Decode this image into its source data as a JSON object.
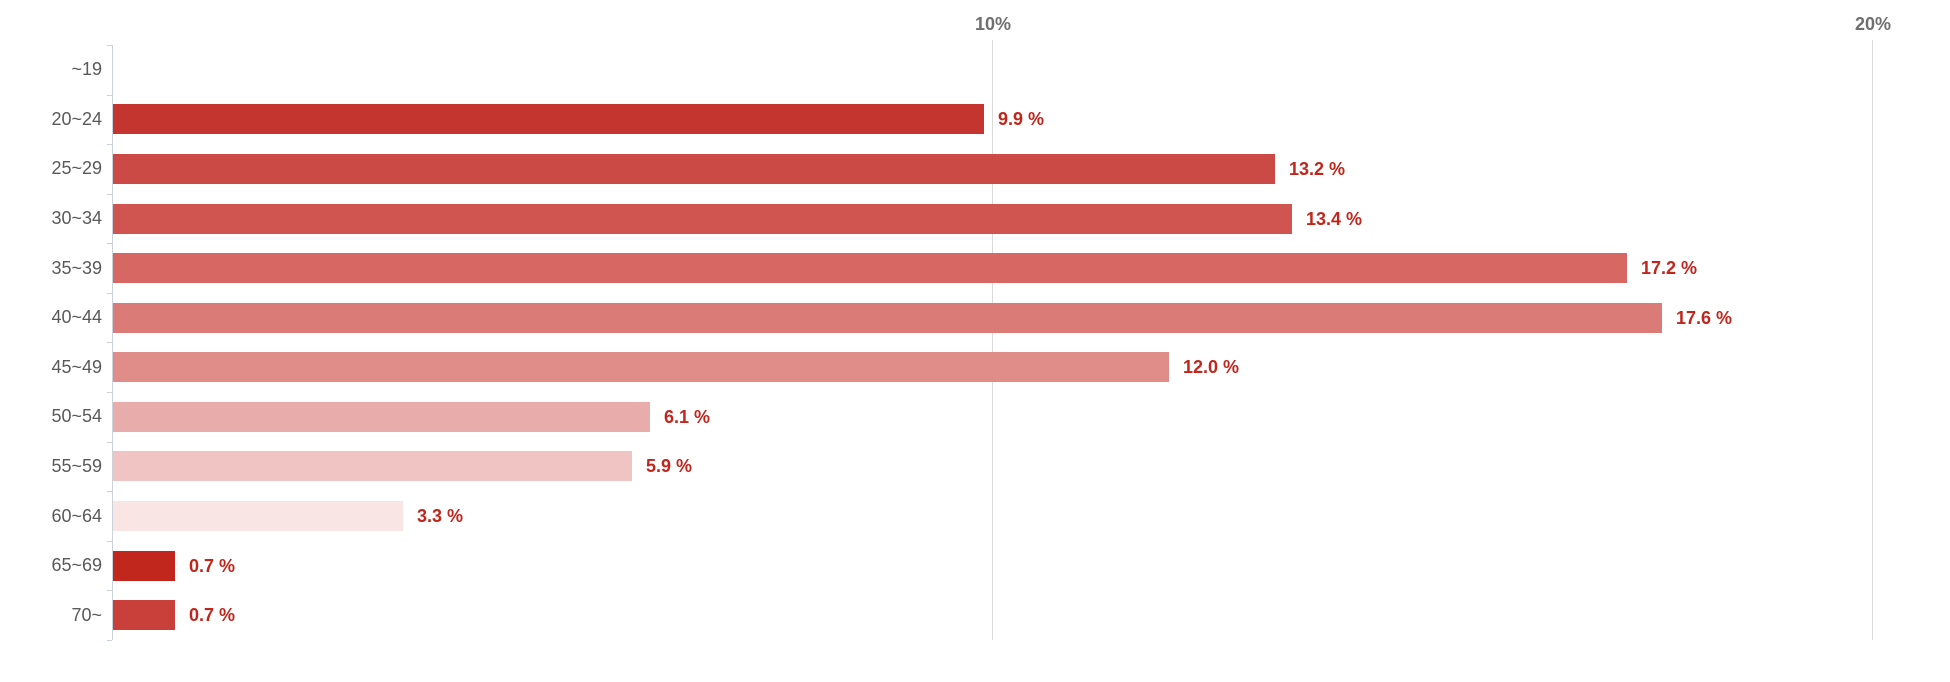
{
  "chart_data": {
    "type": "bar",
    "orientation": "horizontal",
    "title": "",
    "xlabel": "",
    "ylabel": "",
    "categories": [
      "~19",
      "20~24",
      "25~29",
      "30~34",
      "35~39",
      "40~44",
      "45~49",
      "50~54",
      "55~59",
      "60~64",
      "65~69",
      "70~"
    ],
    "values": [
      0,
      9.9,
      13.2,
      13.4,
      17.2,
      17.6,
      12.0,
      6.1,
      5.9,
      3.3,
      0.7,
      0.7
    ],
    "value_labels": [
      null,
      "9.9 %",
      "13.2 %",
      "13.4 %",
      "17.2 %",
      "17.6 %",
      "12.0 %",
      "6.1 %",
      "5.9 %",
      "3.3 %",
      "0.7 %",
      "0.7 %"
    ],
    "bar_colors": [
      null,
      "#c43530",
      "#cc4a46",
      "#d05551",
      "#d66763",
      "#db7b78",
      "#e08d8a",
      "#e8adab",
      "#efc4c2",
      "#f8e5e4",
      "#c1271d",
      "#c9403b"
    ],
    "x_ticks": [
      {
        "value": 10,
        "label": "10%"
      },
      {
        "value": 20,
        "label": "20%"
      }
    ],
    "xlim": [
      0,
      21.1
    ],
    "grid": true,
    "legend": false,
    "styles": {
      "value_label_color": "#c0261c",
      "category_label_color": "#595959",
      "axis_tick_label_color": "#6e6e6e",
      "axis_line_color": "#ccd2d9",
      "gridline_color": "#d9d9d9",
      "background": "#ffffff"
    }
  }
}
